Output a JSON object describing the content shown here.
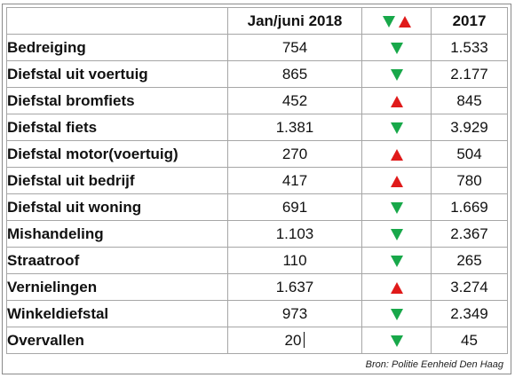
{
  "header": {
    "col_name": "",
    "col_2018": "Jan/juni 2018",
    "col_arrows": [
      "down",
      "up"
    ],
    "col_2017": "2017"
  },
  "colors": {
    "down": "#18a84a",
    "up": "#e01a1a"
  },
  "rows": [
    {
      "name": "Bedreiging",
      "y2018": "754",
      "trend": "down",
      "y2017": "1.533"
    },
    {
      "name": "Diefstal uit voertuig",
      "y2018": "865",
      "trend": "down",
      "y2017": "2.177"
    },
    {
      "name": "Diefstal bromfiets",
      "y2018": "452",
      "trend": "up",
      "y2017": "845"
    },
    {
      "name": "Diefstal fiets",
      "y2018": "1.381",
      "trend": "down",
      "y2017": "3.929"
    },
    {
      "name": "Diefstal motor(voertuig)",
      "y2018": "270",
      "trend": "up",
      "y2017": "504"
    },
    {
      "name": "Diefstal uit bedrijf",
      "y2018": "417",
      "trend": "up",
      "y2017": "780"
    },
    {
      "name": "Diefstal uit woning",
      "y2018": "691",
      "trend": "down",
      "y2017": "1.669"
    },
    {
      "name": "Mishandeling",
      "y2018": "1.103",
      "trend": "down",
      "y2017": "2.367"
    },
    {
      "name": "Straatroof",
      "y2018": "110",
      "trend": "down",
      "y2017": "265"
    },
    {
      "name": "Vernielingen",
      "y2018": "1.637",
      "trend": "up",
      "y2017": "3.274"
    },
    {
      "name": "Winkeldiefstal",
      "y2018": "973",
      "trend": "down",
      "y2017": "2.349"
    },
    {
      "name": "Overvallen",
      "y2018": "20",
      "trend": "down",
      "y2017": "45"
    }
  ],
  "source": "Bron: Politie Eenheid Den Haag"
}
